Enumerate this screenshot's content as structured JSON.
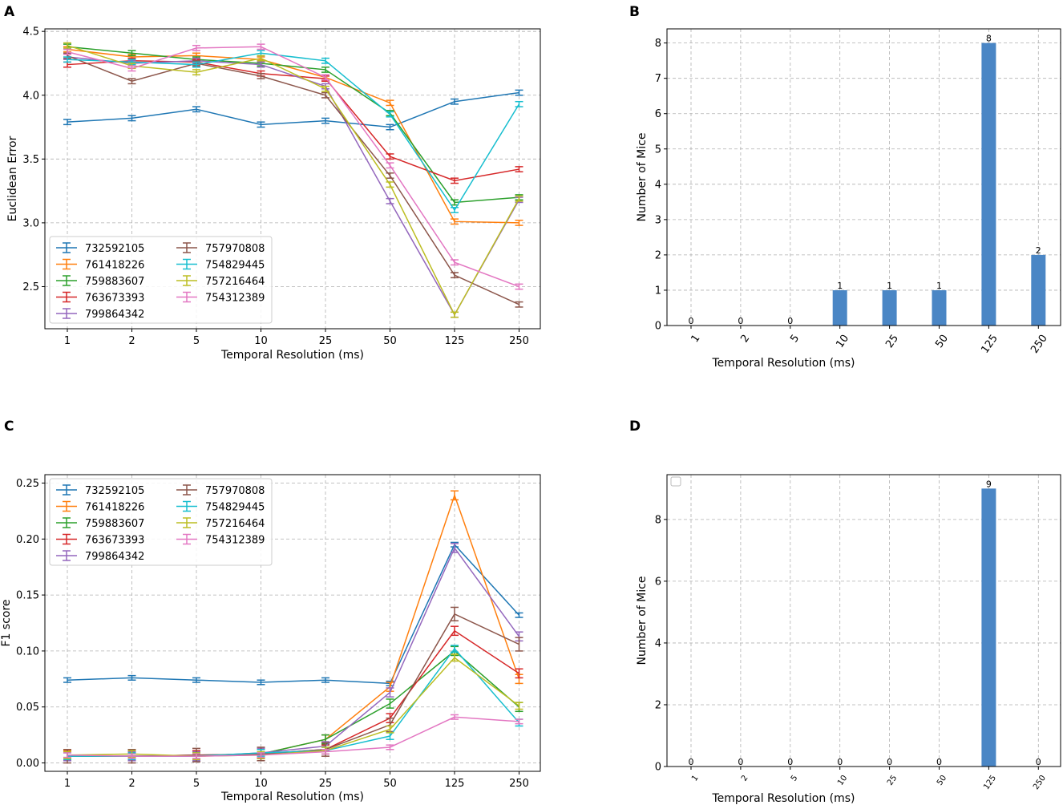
{
  "colors": [
    "#1f77b4",
    "#ff7f0e",
    "#2ca02c",
    "#d62728",
    "#9467bd",
    "#8c564b",
    "#17becf",
    "#bcbd22",
    "#e377c2"
  ],
  "bar_color": "#4a86c5",
  "chart_data": [
    {
      "id": "A",
      "panel_label": "A",
      "type": "line",
      "xlabel": "Temporal Resolution (ms)",
      "ylabel": "Euclidean Error",
      "categories": [
        "1",
        "2",
        "5",
        "10",
        "25",
        "50",
        "125",
        "250"
      ],
      "ylim": [
        2.17,
        4.52
      ],
      "yticks": [
        "2.5",
        "3.0",
        "3.5",
        "4.0",
        "4.5"
      ],
      "legend_position": "lower-left",
      "series": [
        {
          "name": "732592105",
          "values": [
            3.79,
            3.82,
            3.89,
            3.77,
            3.8,
            3.75,
            3.95,
            4.02
          ],
          "err": 0.02
        },
        {
          "name": "761418226",
          "values": [
            4.36,
            4.3,
            4.31,
            4.28,
            4.14,
            3.94,
            3.01,
            3.0
          ],
          "err": 0.02
        },
        {
          "name": "759883607",
          "values": [
            4.38,
            4.33,
            4.28,
            4.25,
            4.2,
            3.86,
            3.16,
            3.2
          ],
          "err": 0.02
        },
        {
          "name": "763673393",
          "values": [
            4.24,
            4.27,
            4.26,
            4.17,
            4.13,
            3.52,
            3.33,
            3.42
          ],
          "err": 0.02
        },
        {
          "name": "799864342",
          "values": [
            4.3,
            4.25,
            4.27,
            4.24,
            4.07,
            3.17,
            2.28,
            3.18
          ],
          "err": 0.02
        },
        {
          "name": "757970808",
          "values": [
            4.31,
            4.11,
            4.25,
            4.15,
            4.0,
            3.37,
            2.59,
            2.36
          ],
          "err": 0.02
        },
        {
          "name": "754829445",
          "values": [
            4.28,
            4.26,
            4.24,
            4.33,
            4.27,
            3.85,
            3.1,
            3.93
          ],
          "err": 0.02
        },
        {
          "name": "757216464",
          "values": [
            4.39,
            4.23,
            4.18,
            4.29,
            4.05,
            3.3,
            2.28,
            3.19
          ],
          "err": 0.02
        },
        {
          "name": "754312389",
          "values": [
            4.34,
            4.21,
            4.37,
            4.38,
            4.14,
            3.45,
            2.69,
            2.5
          ],
          "err": 0.02
        }
      ]
    },
    {
      "id": "B",
      "panel_label": "B",
      "type": "bar",
      "xlabel": "Temporal Resolution (ms)",
      "ylabel": "Number of Mice",
      "categories": [
        "1",
        "2",
        "5",
        "10",
        "25",
        "50",
        "125",
        "250"
      ],
      "values": [
        0,
        0,
        0,
        1,
        1,
        1,
        8,
        2
      ],
      "bar_labels": [
        "0",
        "0",
        "0",
        "1",
        "1",
        "1",
        "8",
        "2"
      ],
      "ylim": [
        0,
        8.4
      ],
      "yticks": [
        "0",
        "1",
        "2",
        "3",
        "4",
        "5",
        "6",
        "7",
        "8"
      ]
    },
    {
      "id": "C",
      "panel_label": "C",
      "type": "line",
      "xlabel": "Temporal Resolution (ms)",
      "ylabel": "F1 score",
      "categories": [
        "1",
        "2",
        "5",
        "10",
        "25",
        "50",
        "125",
        "250"
      ],
      "ylim": [
        -0.0075,
        0.2575
      ],
      "yticks": [
        "0.00",
        "0.05",
        "0.10",
        "0.15",
        "0.20",
        "0.25"
      ],
      "legend_position": "upper-left",
      "series": [
        {
          "name": "732592105",
          "values": [
            0.074,
            0.076,
            0.074,
            0.072,
            0.074,
            0.071,
            0.195,
            0.132
          ],
          "err": 0.002
        },
        {
          "name": "761418226",
          "values": [
            0.007,
            0.006,
            0.006,
            0.008,
            0.021,
            0.068,
            0.239,
            0.075
          ],
          "err": 0.004
        },
        {
          "name": "759883607",
          "values": [
            0.006,
            0.006,
            0.006,
            0.008,
            0.021,
            0.053,
            0.1,
            0.05
          ],
          "err": 0.004
        },
        {
          "name": "763673393",
          "values": [
            0.006,
            0.006,
            0.007,
            0.008,
            0.012,
            0.04,
            0.118,
            0.08
          ],
          "err": 0.004
        },
        {
          "name": "799864342",
          "values": [
            0.006,
            0.006,
            0.006,
            0.009,
            0.015,
            0.063,
            0.192,
            0.113
          ],
          "err": 0.004
        },
        {
          "name": "757970808",
          "values": [
            0.006,
            0.006,
            0.007,
            0.008,
            0.012,
            0.034,
            0.133,
            0.106
          ],
          "err": 0.006
        },
        {
          "name": "754829445",
          "values": [
            0.006,
            0.006,
            0.006,
            0.009,
            0.011,
            0.024,
            0.102,
            0.036
          ],
          "err": 0.003
        },
        {
          "name": "757216464",
          "values": [
            0.007,
            0.008,
            0.006,
            0.007,
            0.011,
            0.03,
            0.094,
            0.051
          ],
          "err": 0.003
        },
        {
          "name": "754312389",
          "values": [
            0.007,
            0.006,
            0.006,
            0.007,
            0.01,
            0.014,
            0.041,
            0.037
          ],
          "err": 0.002
        }
      ]
    },
    {
      "id": "D",
      "panel_label": "D",
      "type": "bar",
      "xlabel": "Temporal Resolution (ms)",
      "ylabel": "Number of Mice",
      "categories": [
        "1",
        "2",
        "5",
        "10",
        "25",
        "50",
        "125",
        "250"
      ],
      "values": [
        0,
        0,
        0,
        0,
        0,
        0,
        9,
        0
      ],
      "bar_labels": [
        "0",
        "0",
        "0",
        "0",
        "0",
        "0",
        "9",
        "0"
      ],
      "ylim": [
        0,
        9.45
      ],
      "yticks": [
        "0",
        "2",
        "4",
        "6",
        "8"
      ],
      "empty_legend": true
    }
  ]
}
